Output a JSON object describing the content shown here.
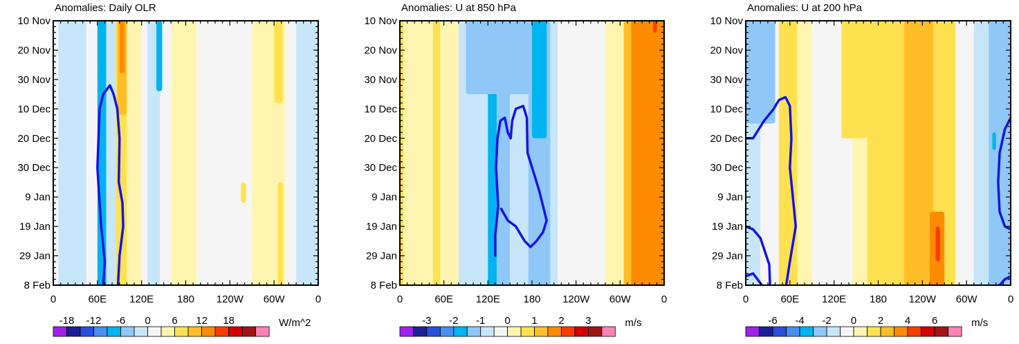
{
  "chart_data": [
    {
      "type": "heatmap",
      "title": "Anomalies: Daily OLR",
      "units": "W/m^2",
      "x_ticks": [
        "0",
        "60E",
        "120E",
        "180",
        "120W",
        "60W",
        "0"
      ],
      "x_tick_lon": [
        0,
        60,
        120,
        180,
        240,
        300,
        360
      ],
      "y_ticks": [
        "10 Nov",
        "20 Nov",
        "30 Nov",
        "10 Dec",
        "20 Dec",
        "30 Dec",
        "9 Jan",
        "19 Jan",
        "29 Jan",
        "8 Feb"
      ],
      "y_tick_day": [
        0,
        10,
        20,
        30,
        40,
        50,
        60,
        70,
        80,
        90
      ],
      "colorbar_labels": [
        "-18",
        "-12",
        "-6",
        "0",
        "6",
        "12",
        "18"
      ],
      "colorbar_label_idx": [
        1,
        3,
        5,
        7,
        9,
        11,
        13
      ],
      "colorbar_colors": [
        "#a020f0",
        "#1e1e96",
        "#2850dc",
        "#4a8ef0",
        "#00b4f0",
        "#8fc8f8",
        "#c8e6fa",
        "#f5f5f5",
        "#fff5b0",
        "#ffe150",
        "#ffbe28",
        "#ff8c00",
        "#ff3c00",
        "#d20000",
        "#a01414",
        "#ff82b4"
      ],
      "bands": [
        {
          "lon": [
            0,
            7
          ],
          "level": 0
        },
        {
          "lon": [
            7,
            45
          ],
          "level": -1
        },
        {
          "lon": [
            45,
            60
          ],
          "level": 0
        },
        {
          "lon": [
            60,
            72
          ],
          "level": -3
        },
        {
          "lon": [
            72,
            85
          ],
          "level": -1
        },
        {
          "lon": [
            85,
            100
          ],
          "level": 2
        },
        {
          "lon": [
            100,
            120
          ],
          "level": 1
        },
        {
          "lon": [
            120,
            128
          ],
          "level": 0
        },
        {
          "lon": [
            128,
            145
          ],
          "level": -1
        },
        {
          "lon": [
            145,
            160
          ],
          "level": 0
        },
        {
          "lon": [
            160,
            195
          ],
          "level": 1
        },
        {
          "lon": [
            195,
            270
          ],
          "level": 0
        },
        {
          "lon": [
            270,
            315
          ],
          "level": 1
        },
        {
          "lon": [
            315,
            330
          ],
          "level": 0
        },
        {
          "lon": [
            330,
            360
          ],
          "level": -1
        }
      ],
      "patches": [
        {
          "lon": [
            87,
            100
          ],
          "day": [
            0,
            32
          ],
          "level": 3
        },
        {
          "lon": [
            90,
            97
          ],
          "day": [
            0,
            18
          ],
          "level": 4
        },
        {
          "lon": [
            140,
            148
          ],
          "day": [
            0,
            24
          ],
          "level": -3
        },
        {
          "lon": [
            255,
            262
          ],
          "day": [
            55,
            62
          ],
          "level": 2
        },
        {
          "lon": [
            300,
            312
          ],
          "day": [
            0,
            28
          ],
          "level": 2
        },
        {
          "lon": [
            305,
            312
          ],
          "day": [
            55,
            90
          ],
          "level": 2
        }
      ],
      "contour_lonlat": [
        [
          68,
          90
        ],
        [
          70,
          82
        ],
        [
          65,
          70
        ],
        [
          60,
          50
        ],
        [
          63,
          30
        ],
        [
          68,
          25
        ],
        [
          77,
          22
        ],
        [
          82,
          25
        ],
        [
          87,
          30
        ],
        [
          90,
          40
        ],
        [
          89,
          55
        ],
        [
          94,
          62
        ],
        [
          95,
          70
        ],
        [
          90,
          80
        ],
        [
          88,
          90
        ]
      ]
    },
    {
      "type": "heatmap",
      "title": "Anomalies: U at 850 hPa",
      "units": "m/s",
      "x_ticks": [
        "0",
        "60E",
        "120E",
        "180",
        "120W",
        "60W",
        "0"
      ],
      "x_tick_lon": [
        0,
        60,
        120,
        180,
        240,
        300,
        360
      ],
      "y_ticks": [
        "10 Nov",
        "20 Nov",
        "30 Nov",
        "10 Dec",
        "20 Dec",
        "30 Dec",
        "9 Jan",
        "19 Jan",
        "29 Jan",
        "8 Feb"
      ],
      "y_tick_day": [
        0,
        10,
        20,
        30,
        40,
        50,
        60,
        70,
        80,
        90
      ],
      "colorbar_labels": [
        "-3",
        "-2",
        "-1",
        "0",
        "1",
        "2",
        "3"
      ],
      "colorbar_label_idx": [
        2,
        4,
        6,
        8,
        10,
        12,
        14
      ],
      "colorbar_colors": [
        "#a020f0",
        "#1e1e96",
        "#2850dc",
        "#4a8ef0",
        "#00b4f0",
        "#8fc8f8",
        "#c8e6fa",
        "#f5f5f5",
        "#fff5b0",
        "#ffe150",
        "#ffbe28",
        "#ff8c00",
        "#ff3c00",
        "#d20000",
        "#a01414",
        "#ff82b4"
      ],
      "bands": [
        {
          "lon": [
            0,
            5
          ],
          "level": 2
        },
        {
          "lon": [
            5,
            45
          ],
          "level": 1
        },
        {
          "lon": [
            45,
            55
          ],
          "level": 2
        },
        {
          "lon": [
            55,
            80
          ],
          "level": 1
        },
        {
          "lon": [
            80,
            120
          ],
          "level": -1
        },
        {
          "lon": [
            120,
            132
          ],
          "level": -3
        },
        {
          "lon": [
            132,
            150
          ],
          "level": -2
        },
        {
          "lon": [
            150,
            175
          ],
          "level": -1
        },
        {
          "lon": [
            175,
            205
          ],
          "level": -2
        },
        {
          "lon": [
            205,
            215
          ],
          "level": -1
        },
        {
          "lon": [
            215,
            280
          ],
          "level": 0
        },
        {
          "lon": [
            280,
            305
          ],
          "level": 1
        },
        {
          "lon": [
            305,
            315
          ],
          "level": 3
        },
        {
          "lon": [
            315,
            360
          ],
          "level": 4
        }
      ],
      "patches": [
        {
          "lon": [
            90,
            180
          ],
          "day": [
            0,
            25
          ],
          "level": -2
        },
        {
          "lon": [
            180,
            200
          ],
          "day": [
            0,
            40
          ],
          "level": -3
        },
        {
          "lon": [
            345,
            350
          ],
          "day": [
            0,
            4
          ],
          "level": 5
        }
      ],
      "contour_lonlat": [
        [
          130,
          80
        ],
        [
          130,
          73
        ],
        [
          134,
          63
        ],
        [
          131,
          50
        ],
        [
          133,
          40
        ],
        [
          137,
          34
        ],
        [
          143,
          33
        ],
        [
          147,
          38
        ],
        [
          151,
          40
        ],
        [
          153,
          34
        ],
        [
          158,
          30
        ],
        [
          168,
          29
        ],
        [
          173,
          33
        ],
        [
          174,
          45
        ],
        [
          184,
          53
        ],
        [
          190,
          58
        ],
        [
          200,
          68
        ],
        [
          195,
          72
        ],
        [
          186,
          75
        ],
        [
          178,
          77
        ],
        [
          170,
          75
        ],
        [
          158,
          70
        ],
        [
          147,
          68
        ],
        [
          138,
          64
        ]
      ]
    },
    {
      "type": "heatmap",
      "title": "Anomalies: U at 200 hPa",
      "units": "m/s",
      "x_ticks": [
        "0",
        "60E",
        "120E",
        "180",
        "120W",
        "60W",
        "0"
      ],
      "x_tick_lon": [
        0,
        60,
        120,
        180,
        240,
        300,
        360
      ],
      "y_ticks": [
        "10 Nov",
        "20 Nov",
        "30 Nov",
        "10 Dec",
        "20 Dec",
        "30 Dec",
        "9 Jan",
        "19 Jan",
        "29 Jan",
        "8 Feb"
      ],
      "y_tick_day": [
        0,
        10,
        20,
        30,
        40,
        50,
        60,
        70,
        80,
        90
      ],
      "colorbar_labels": [
        "-6",
        "-4",
        "-2",
        "0",
        "2",
        "4",
        "6"
      ],
      "colorbar_label_idx": [
        2,
        4,
        6,
        8,
        10,
        12,
        14
      ],
      "colorbar_colors": [
        "#a020f0",
        "#1e1e96",
        "#2850dc",
        "#4a8ef0",
        "#00b4f0",
        "#8fc8f8",
        "#c8e6fa",
        "#f5f5f5",
        "#fff5b0",
        "#ffe150",
        "#ffbe28",
        "#ff8c00",
        "#ff3c00",
        "#d20000",
        "#a01414",
        "#ff82b4"
      ],
      "bands": [
        {
          "lon": [
            0,
            20
          ],
          "level": -1
        },
        {
          "lon": [
            20,
            45
          ],
          "level": 0
        },
        {
          "lon": [
            45,
            70
          ],
          "level": 2
        },
        {
          "lon": [
            70,
            90
          ],
          "level": 1
        },
        {
          "lon": [
            90,
            145
          ],
          "level": 0
        },
        {
          "lon": [
            145,
            165
          ],
          "level": 1
        },
        {
          "lon": [
            165,
            215
          ],
          "level": 2
        },
        {
          "lon": [
            215,
            255
          ],
          "level": 3
        },
        {
          "lon": [
            255,
            285
          ],
          "level": 2
        },
        {
          "lon": [
            285,
            310
          ],
          "level": 0
        },
        {
          "lon": [
            310,
            330
          ],
          "level": -1
        },
        {
          "lon": [
            330,
            360
          ],
          "level": -2
        }
      ],
      "patches": [
        {
          "lon": [
            0,
            40
          ],
          "day": [
            0,
            35
          ],
          "level": -2
        },
        {
          "lon": [
            130,
            165
          ],
          "day": [
            0,
            40
          ],
          "level": 2
        },
        {
          "lon": [
            250,
            270
          ],
          "day": [
            65,
            90
          ],
          "level": 4
        },
        {
          "lon": [
            258,
            264
          ],
          "day": [
            70,
            82
          ],
          "level": 5
        },
        {
          "lon": [
            335,
            340
          ],
          "day": [
            38,
            44
          ],
          "level": -3
        }
      ],
      "contour_lonlat": [
        [
          [
            0,
            40
          ],
          [
            10,
            40
          ],
          [
            25,
            34
          ],
          [
            38,
            30
          ],
          [
            45,
            27
          ],
          [
            54,
            26
          ],
          [
            60,
            29
          ],
          [
            62,
            40
          ],
          [
            60,
            50
          ],
          [
            64,
            60
          ],
          [
            68,
            70
          ],
          [
            60,
            82
          ],
          [
            55,
            90
          ]
        ],
        [
          [
            0,
            70
          ],
          [
            10,
            71
          ],
          [
            20,
            74
          ],
          [
            32,
            83
          ],
          [
            33,
            90
          ]
        ],
        [
          [
            0,
            87
          ],
          [
            10,
            86
          ],
          [
            16,
            88
          ],
          [
            22,
            90
          ]
        ],
        [
          [
            360,
            33
          ],
          [
            352,
            37
          ],
          [
            345,
            45
          ],
          [
            343,
            55
          ],
          [
            345,
            65
          ],
          [
            352,
            70
          ],
          [
            360,
            71
          ]
        ],
        [
          [
            345,
            90
          ],
          [
            352,
            88
          ],
          [
            360,
            87
          ]
        ]
      ]
    }
  ]
}
